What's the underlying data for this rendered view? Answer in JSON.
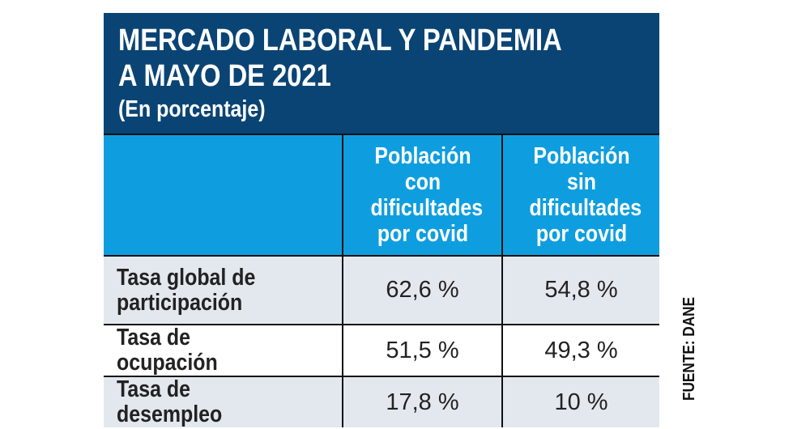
{
  "chart_data": {
    "type": "table",
    "title": "MERCADO LABORAL Y PANDEMIA A MAYO DE 2021",
    "title_lines": [
      "MERCADO LABORAL Y PANDEMIA",
      "A MAYO DE 2021"
    ],
    "subtitle": "(En porcentaje)",
    "columns": [
      "",
      "Población con dificultades por covid",
      "Población sin dificultades por covid"
    ],
    "rows": [
      {
        "label": "Tasa global de participación",
        "values": [
          "62,6 %",
          "54,8 %"
        ]
      },
      {
        "label": "Tasa de ocupación",
        "values": [
          "51,5 %",
          "49,3 %"
        ]
      },
      {
        "label": "Tasa de desempleo",
        "values": [
          "17,8 %",
          "10 %"
        ]
      }
    ],
    "source": "FUENTE: DANE",
    "colors": {
      "title_bg": "#0a4474",
      "header_bg": "#0e9ee0",
      "row_alt_bg": "#e3e8ee"
    }
  }
}
